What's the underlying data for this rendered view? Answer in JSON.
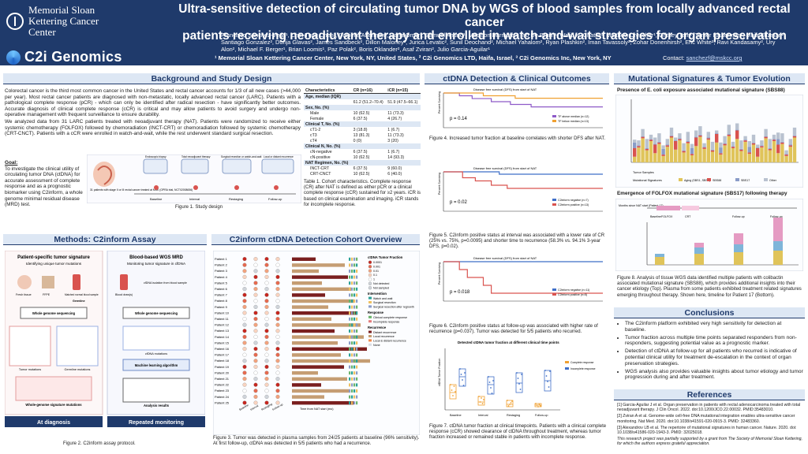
{
  "header": {
    "org1": "Memorial Sloan Kettering Cancer Center",
    "org2": "C2i Genomics",
    "title_line1": "Ultra-sensitive detection of circulating tumor DNA by WGS of blood samples from locally advanced rectal cancer",
    "title_line2": "patients receiving neoadjuvant therapy and enrolled in watch-and-wait strategies for organ preservation",
    "authors": "Francisco Sanchez-Vega¹, Chin-Tung Chen¹, Danielle Afterman², Dana Omer¹, Samuel Ahuno¹, Madison Darmofal¹, Ino De Bruijn¹, Walid K. Chatila¹, Matthew Drescher¹, Gritney Tam¹, Tomer Lauterman², Maja Kuzman², Santiago Gonzalez², Dunja Glavas², James Sandbeck², Dillon Maloney², Jurica Levatic², Sunil Deochand², Michael Yahalom², Ryan Plashkin², Iman Tavassoly², Zohar Donenhirsh², Eric White², Ravi Kandasamy², Ury Alon², Michael F. Berger¹, Brian Loomis¹, Paz Polak², Boris Oklander², Asaf Zviran², Julio Garcia-Aguilar¹",
    "affiliations": "¹ Memorial Sloan Kettering Cancer Center, New York, NY, United States,  ² C2i Genomics LTD, Haifa, Israel, ³ C2i Genomics Inc, New York, NY",
    "contact_label": "Contact:",
    "contact_email": "sanchezf@mskcc.org"
  },
  "background": {
    "title": "Background and Study Design",
    "p1": "Colorectal cancer is the third most common cancer in the United States and rectal cancer accounts for 1/3 of all new cases (>44,000 per year). Most rectal cancer patients are diagnosed with non-metastatic, locally advanced rectal cancer (LARC). Patients with a pathological complete response (pCR) - which can only be identified after radical resection - have significantly better outcomes. Accurate diagnosis of clinical complete response (cCR) is critical and may allow patients to avoid surgery and undergo non-operative management with frequent surveillance to ensure durability.",
    "p2": "We analyzed data from 31 LARC patients treated with neoadjuvant therapy (NAT). Patients were randomized to receive either systemic chemotherapy (FOLFOX) followed by chemoradiation (INCT-CRT) or chemoradiation followed by systemic chemotherapy (CRT-CNCT). Patients with a cCR were enrolled in watch-and-wait, while the rest underwent standard surgical resection.",
    "goal_label": "Goal:",
    "goal": "To investigate the clinical utility of circulating tumor DNA (ctDNA) for accurate assessment of complete response and as a prognostic biomarker using C2inform, a whole genome minimal residual disease (MRD) test.",
    "fig1_caption": "Figure 1. Study design",
    "fig1_patients": "31 patients with stage II or III rectal cancer treated at MSK (OPRA trial, NCT02008656)",
    "fig1_timepoints": [
      "Baseline",
      "Interval",
      "Restaging",
      "Follow-up"
    ],
    "fig1_steps": [
      "Endoscopic biopsy",
      "Total neoadjuvant therapy",
      "Surgical resection or watch-and-wait",
      "Local or distant recurrence"
    ]
  },
  "table1": {
    "headers": [
      "Characteristics",
      "CR (n=16)",
      "iCR (n=15)"
    ],
    "rows": [
      {
        "sec": true,
        "label": "Age, median (IQR)",
        "a": "",
        "b": ""
      },
      {
        "sec": false,
        "label": "",
        "a": "61.2 (51.2–70.4)",
        "b": "51.9 (47.5–66.1)"
      },
      {
        "sec": true,
        "label": "Sex, No. (%)",
        "a": "",
        "b": ""
      },
      {
        "sec": false,
        "label": "Male",
        "a": "10 (62.5)",
        "b": "11 (73.3)"
      },
      {
        "sec": false,
        "label": "Female",
        "a": "6 (37.5)",
        "b": "4 (26.7)"
      },
      {
        "sec": true,
        "label": "Clinical T, No. (%)",
        "a": "",
        "b": ""
      },
      {
        "sec": false,
        "label": "cT1-2",
        "a": "3 (18.8)",
        "b": "1 (6.7)"
      },
      {
        "sec": false,
        "label": "cT3",
        "a": "13 (81.3)",
        "b": "11 (73.3)"
      },
      {
        "sec": false,
        "label": "cT4",
        "a": "0 (0)",
        "b": "3 (20)"
      },
      {
        "sec": true,
        "label": "Clinical N, No. (%)",
        "a": "",
        "b": ""
      },
      {
        "sec": false,
        "label": "cN-negative",
        "a": "6 (37.5)",
        "b": "1 (6.7)"
      },
      {
        "sec": false,
        "label": "cN-positive",
        "a": "10 (62.5)",
        "b": "14 (93.3)"
      },
      {
        "sec": true,
        "label": "NAT Regimen, No. (%)",
        "a": "",
        "b": ""
      },
      {
        "sec": false,
        "label": "INCT-CRT",
        "a": "6 (37.5)",
        "b": "9 (60.0)"
      },
      {
        "sec": false,
        "label": "CRT-CNCT",
        "a": "10 (62.5)",
        "b": "6 (40.0)"
      }
    ],
    "caption": "Table 1. Cohort characteristics. Complete response (CR) after NAT is defined as either pCR or a clinical complete response (cCR) sustained for ≥2 years. iCR is based on clinical examination and imaging. iCR stands for incomplete response."
  },
  "methods": {
    "title": "Methods: C2inform Assay",
    "left_title": "Patient-specific tumor signature",
    "left_sub": "Identifying unique tumor mutations",
    "right_title": "Blood-based WGS MRD",
    "right_sub": "Monitoring tumor signature in cfDNA",
    "labels": [
      "Fresh tissue",
      "FFPE",
      "Matched normal blood sample",
      "Germline",
      "Whole genome sequencing",
      "Tumor mutations",
      "Germline mutations",
      "Whole-genome signature mutations",
      "Blood draw(s)",
      "cfDNA isolation from blood sample",
      "Whole genome sequencing",
      "cfDNA mutations",
      "Machine learning algorithm",
      "Analysis results"
    ],
    "at_diagnosis": "At diagnosis",
    "repeated": "Repeated monitoring",
    "fig2_caption": "Figure 2. C2inform assay protocol."
  },
  "cohort": {
    "title": "C2inform ctDNA Detection Cohort Overview",
    "patients": [
      "Patient 1",
      "Patient 2",
      "Patient 3",
      "Patient 4",
      "Patient 5",
      "Patient 6",
      "Patient 7",
      "Patient 8",
      "Patient 9",
      "Patient 10",
      "Patient 11",
      "Patient 12",
      "Patient 13",
      "Patient 14",
      "Patient 15",
      "Patient 16",
      "Patient 17",
      "Patient 18",
      "Patient 19",
      "Patient 20",
      "Patient 21",
      "Patient 22",
      "Patient 23",
      "Patient 24",
      "Patient 25"
    ],
    "columns": [
      "Baseline",
      "Interval",
      "Restaging",
      "Follow-up"
    ],
    "xlabel": "Time from NAT start (mo)",
    "legend_title": "ctDNA Tumor Fraction",
    "legend_items": [
      "0.0001",
      "0.001",
      "0.01",
      "0.1",
      "1",
      "Not detected",
      "Not sampled"
    ],
    "intervention_title": "Intervention",
    "intervention_items": [
      "Watch and wait",
      "Surgical resection",
      "Surgical resection after regrowth"
    ],
    "response_title": "Response",
    "response_items": [
      "Clinical complete response",
      "Incomplete response"
    ],
    "recurrence_title": "Recurrence",
    "recurrence_items": [
      "Distant recurrence",
      "Local recurrence",
      "Local & distant recurrence",
      "None"
    ],
    "fig3_caption": "Figure 3. Tumor was detected in plasma samples from 24/25 patients at baseline (96% sensitivity). At first follow-up, ctDNA was detected in 5/5 patients who had a recurrence."
  },
  "ctdna": {
    "title": "ctDNA Detection & Clinical Outcomes",
    "km1_title": "Disease free survival (DFS) from start of NAT",
    "km1_p": "p = 0.14",
    "km1_legend": [
      "TF above median (n=12)",
      "TF below median (n=13)"
    ],
    "km1_caption": "Figure 4. Increased tumor fraction at baseline correlates with shorter DFS after NAT.",
    "km2_title": "Disease free survival (DFS) from start of NAT",
    "km2_p": "p = 0.02",
    "km2_legend": [
      "C2inform negative (n=7)",
      "C2inform positive (n=13)"
    ],
    "km2_caption": "Figure 5. C2inform positive status at interval was associated with a lower rate of CR (25% vs. 75%, p=0.0095) and shorter time to recurrence (58.3% vs. 94.1% 3-year DFS, p=0.02).",
    "km3_title": "Disease free survival (DFS) from start of NAT",
    "km3_p": "p = 0.018",
    "km3_legend": [
      "C2inform negative (n=11)",
      "C2inform positive (n=5)"
    ],
    "km3_caption": "Figure 6. C2inform positive status at follow-up was associated with higher rate of recurrence (p=0.037). Tumor was detected for 5/5 patients who recurred.",
    "ylabel": "Percent Surviving",
    "xlabel": "Time (months)",
    "fig7_title": "Detected ctDNA tumor fraction at different clinical time points",
    "fig7_groups": [
      "Baseline",
      "Interval",
      "Restaging",
      "Follow-up"
    ],
    "fig7_ylabel": "ctDNA Tumor Fraction",
    "fig7_legend": [
      "Complete response",
      "Incomplete response"
    ],
    "fig7_caption": "Figure 7. ctDNA tumor fraction at clinical timepoints. Patients with a clinical complete response (cCR) showed clearance of ctDNA throughout treatment, whereas tumor fraction increased or remained stable in patients with incomplete response."
  },
  "signatures": {
    "title": "Mutational Signatures & Tumor Evolution",
    "sub1": "Presence of E. coli exposure associated mutational signature (SBS88)",
    "sub2": "Emergence of FOLFOX mutational signature (SBS17) following therapy",
    "fig8_caption": "Figure 8. Analysis of tissue WGS data identified multiple patients with colibactin associated mutational signature (SBS88), which provides additional insights into their cancer etiology (Top). Plasma from some patients exhibited treatment related signatures emerging throughout therapy. Shown here, timeline for Patient 17 (Bottom).",
    "legend": [
      "Tumor Samples",
      "Mutational Signatures",
      "Aging (SBS1, SBS5)",
      "SBS88",
      "SBS17",
      "Other"
    ],
    "timeline_labels": [
      "Months since NAT start (Patient 17)",
      "Baseline",
      "FOLFOX",
      "CRT",
      "Follow-up",
      "Follow-up"
    ]
  },
  "conclusions": {
    "title": "Conclusions",
    "items": [
      "The C2inform platform exhibited very high sensitivity for detection at baseline.",
      "Tumor fraction across multiple time points separated responders from non-responders, suggesting potential value as a prognostic marker.",
      "Detection of ctDNA at follow-up for all patients who recurred is indicative of potential clinical utility for treatment de-escalation in the context of organ preservation strategies.",
      "WGS analysis also provides valuable insights about tumor etiology and tumor progression during and after treatment."
    ]
  },
  "references": {
    "title": "References",
    "items": [
      "[1] Garcia-Aguilar J et al. Organ preservation in patients with rectal adenocarcinoma treated with total neoadjuvant therapy. J Clin Oncol. 2022. doi:10.1200/JCO.22.00032. PMID:35483010.",
      "[2] Zviran A et al. Genome-wide cell-free DNA mutational integration enables ultra-sensitive cancer monitoring. Nat Med. 2020. doi:10.1038/s41591-020-0915-3. PMID: 32483360.",
      "[3] Alexandrov LB et al. The repertoire of mutational signatures in human cancer. Nature. 2020. doi: 10.1038/s41586-020-1943-3. PMID: 32025018."
    ],
    "funding": "This research project was partially supported by a grant from The Society of Memorial Sloan Kettering, for which the authors express grateful appreciation."
  },
  "colors": {
    "navy": "#1f3a6b",
    "light": "#dde7f4",
    "purple": "#8e5ac8",
    "orange": "#f0a030",
    "teal": "#2aa198",
    "red": "#d9534f",
    "blue": "#3f6fc8"
  }
}
